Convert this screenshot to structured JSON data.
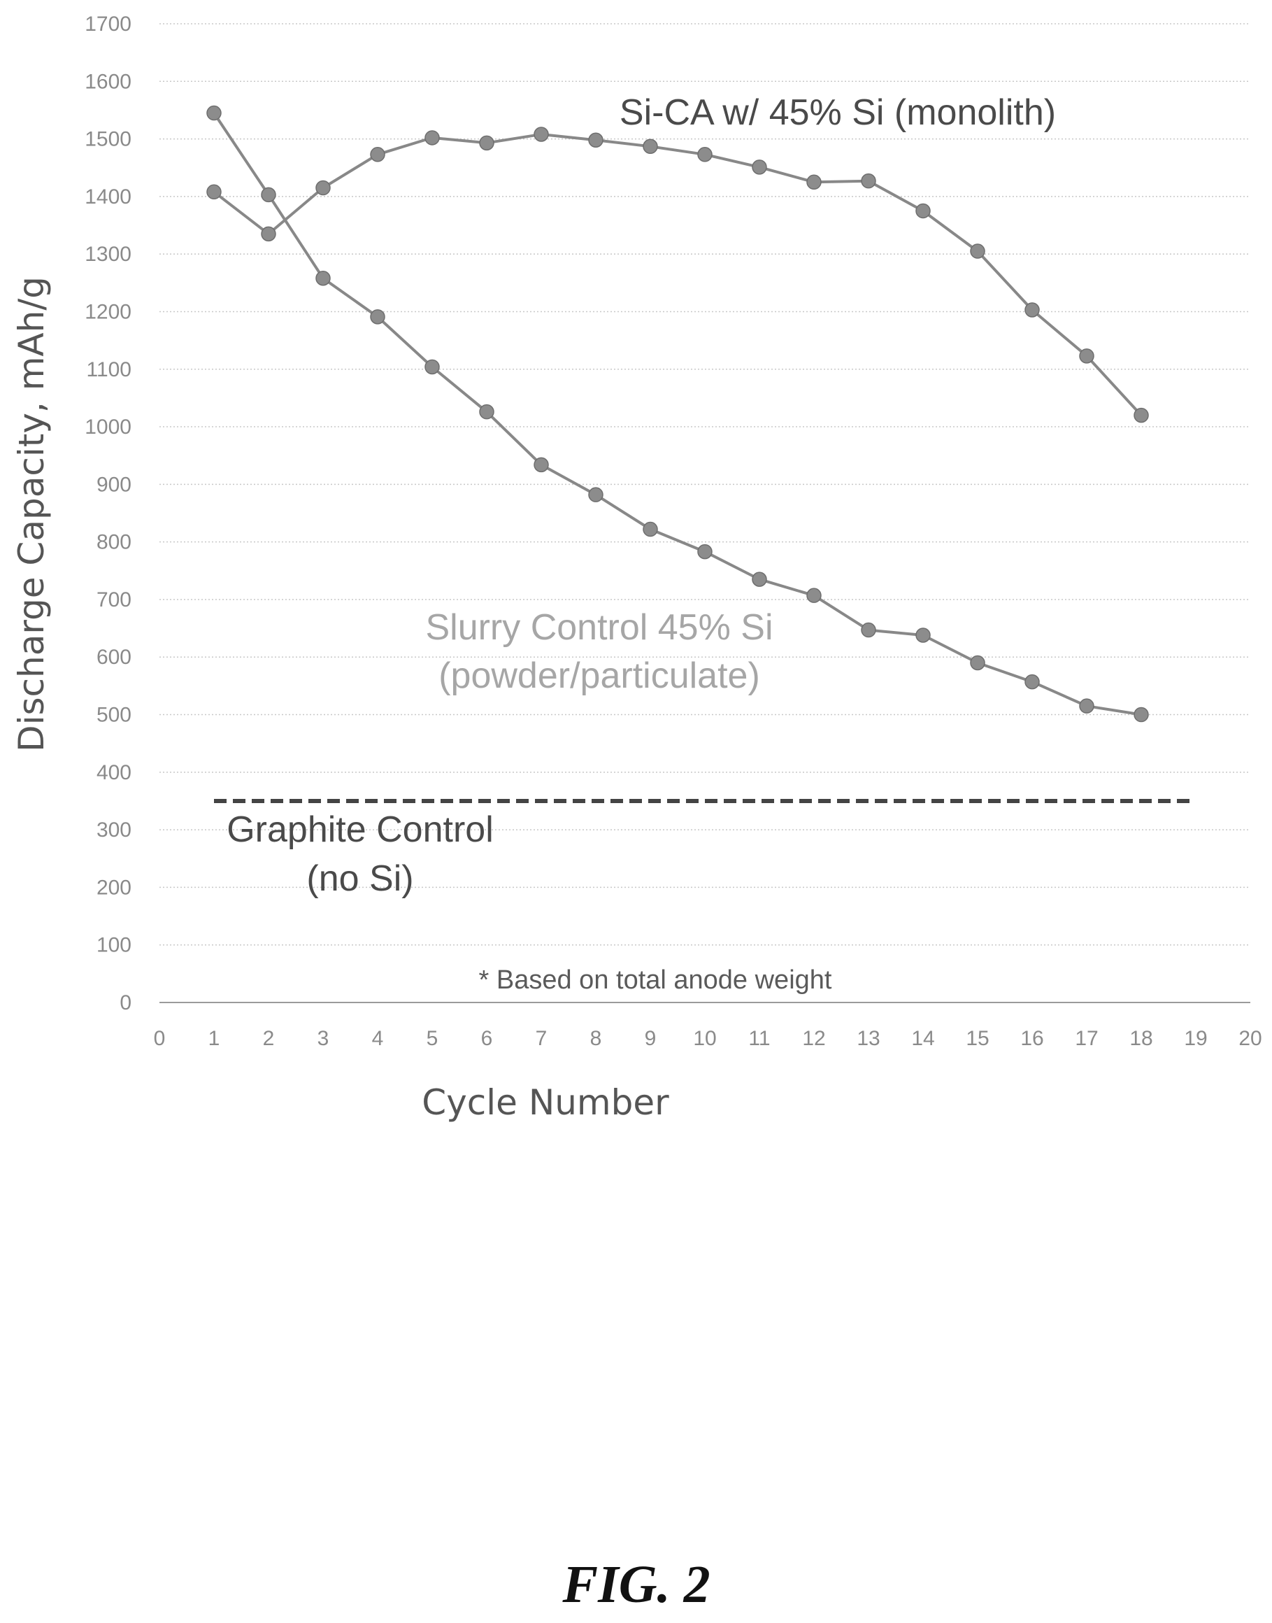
{
  "chart_data": {
    "type": "line",
    "xlabel": "Cycle Number",
    "ylabel": "Discharge Capacity, mAh/g",
    "xlim": [
      0,
      20
    ],
    "ylim": [
      0,
      1700
    ],
    "x_ticks": [
      "0",
      "1",
      "2",
      "3",
      "4",
      "5",
      "6",
      "7",
      "8",
      "9",
      "10",
      "11",
      "12",
      "13",
      "14",
      "15",
      "16",
      "17",
      "18",
      "19",
      "20"
    ],
    "y_ticks": [
      "0",
      "100",
      "200",
      "300",
      "400",
      "500",
      "600",
      "700",
      "800",
      "900",
      "1000",
      "1100",
      "1200",
      "1300",
      "1400",
      "1500",
      "1600",
      "1700"
    ],
    "grid": "horizontal dotted",
    "series": [
      {
        "name": "Si-CA w/ 45% Si (monolith)",
        "x": [
          1,
          2,
          3,
          4,
          5,
          6,
          7,
          8,
          9,
          10,
          11,
          12,
          13,
          14,
          15,
          16,
          17,
          18
        ],
        "values": [
          1408,
          1335,
          1415,
          1473,
          1502,
          1493,
          1508,
          1498,
          1487,
          1473,
          1451,
          1425,
          1427,
          1375,
          1305,
          1203,
          1123,
          1020
        ],
        "color": "#888888"
      },
      {
        "name": "Slurry Control 45% Si",
        "x": [
          1,
          2,
          3,
          4,
          5,
          6,
          7,
          8,
          9,
          10,
          11,
          12,
          13,
          14,
          15,
          16,
          17,
          18
        ],
        "values": [
          1545,
          1403,
          1258,
          1191,
          1104,
          1026,
          934,
          882,
          822,
          783,
          735,
          707,
          647,
          638,
          590,
          557,
          515,
          500
        ],
        "color": "#888888"
      },
      {
        "name": "Graphite Control",
        "x": [
          1,
          19
        ],
        "values": [
          350,
          350
        ],
        "style": "dashed",
        "color": "#444444"
      }
    ],
    "annotations": {
      "monolith_label": "Si-CA w/ 45% Si (monolith)",
      "slurry_label_line1": "Slurry Control 45% Si",
      "slurry_label_line2": "(powder/particulate)",
      "graphite_label_line1": "Graphite Control",
      "graphite_label_line2": "(no Si)",
      "note": "* Based on total anode weight"
    }
  },
  "figure_label": "FIG. 2"
}
